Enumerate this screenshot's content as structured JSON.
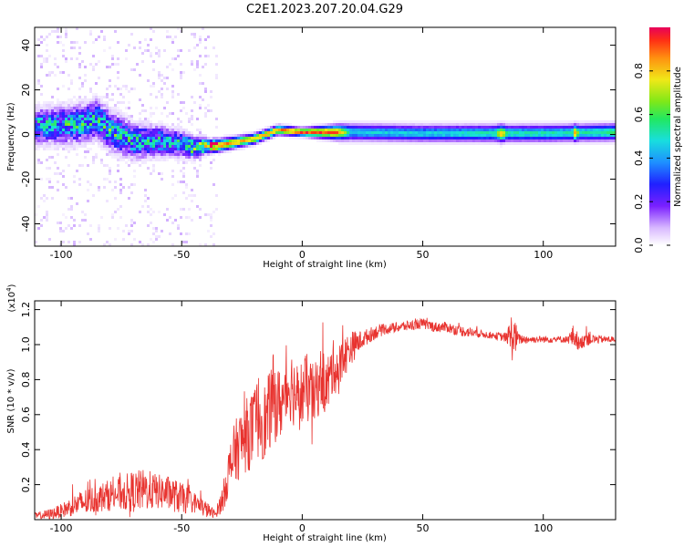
{
  "title": "C2E1.2023.207.20.04.G29",
  "colors": {
    "snr_line": "#e8332f",
    "colormap": [
      "#ffffff",
      "#e8d8ff",
      "#b070ff",
      "#6a18ff",
      "#2020ff",
      "#1e8cff",
      "#18dede",
      "#22e87a",
      "#7ee818",
      "#f0e818",
      "#ffa010",
      "#ff3c14",
      "#e8005a"
    ]
  },
  "chart_data": [
    {
      "type": "heatmap",
      "xlabel": "Height of straight line (km)",
      "ylabel": "Frequency (Hz)",
      "xlim": [
        -111,
        130
      ],
      "ylim": [
        -50,
        48
      ],
      "x_ticks": [
        -100,
        -50,
        0,
        50,
        100
      ],
      "y_ticks": [
        -40,
        -20,
        0,
        20,
        40
      ],
      "x_tick_labels": [
        "-100",
        "-50",
        "0",
        "50",
        "100"
      ],
      "y_tick_labels": [
        "-40",
        "-20",
        "0",
        "20",
        "40"
      ],
      "ridge_center_hz": [
        [
          -111,
          4
        ],
        [
          -100,
          4
        ],
        [
          -90,
          5
        ],
        [
          -85,
          7
        ],
        [
          -80,
          2
        ],
        [
          -70,
          -3
        ],
        [
          -60,
          -3
        ],
        [
          -50,
          -4
        ],
        [
          -45,
          -6
        ],
        [
          -40,
          -5
        ],
        [
          -35,
          -5
        ],
        [
          -25,
          -3
        ],
        [
          -20,
          -2
        ],
        [
          -15,
          0
        ],
        [
          -10,
          2
        ],
        [
          0,
          1
        ],
        [
          10,
          1
        ],
        [
          20,
          1
        ],
        [
          50,
          0.5
        ],
        [
          100,
          0.5
        ],
        [
          130,
          1
        ]
      ],
      "ridge_halfwidth_hz": [
        [
          -111,
          8
        ],
        [
          -80,
          9
        ],
        [
          -50,
          6
        ],
        [
          -38,
          3
        ],
        [
          -20,
          2.5
        ],
        [
          0,
          2
        ],
        [
          20,
          4
        ],
        [
          50,
          4
        ],
        [
          130,
          4
        ]
      ],
      "ridge_peak_amplitude": [
        [
          -111,
          0.45
        ],
        [
          -80,
          0.5
        ],
        [
          -50,
          0.45
        ],
        [
          -38,
          0.9
        ],
        [
          -20,
          0.8
        ],
        [
          0,
          0.95
        ],
        [
          15,
          0.9
        ],
        [
          20,
          0.5
        ],
        [
          50,
          0.5
        ],
        [
          80,
          0.55
        ],
        [
          83,
          0.9
        ],
        [
          85,
          0.55
        ],
        [
          112,
          0.55
        ],
        [
          113,
          0.9
        ],
        [
          115,
          0.55
        ],
        [
          130,
          0.6
        ]
      ],
      "colorbar": {
        "label": "Normalized spectral amplitude",
        "range": [
          0,
          1
        ],
        "ticks": [
          0.0,
          0.2,
          0.4,
          0.6,
          0.8
        ],
        "tick_labels": [
          "0.0",
          "0.2",
          "0.4",
          "0.6",
          "0.8"
        ]
      }
    },
    {
      "type": "line",
      "xlabel": "Height of straight line (km)",
      "ylabel": "SNR (10 * v/v)",
      "y_multiplier": "(x10",
      "y_multiplier_exp": "4",
      "y_multiplier_close": ")",
      "xlim": [
        -111,
        130
      ],
      "ylim": [
        0,
        1.25
      ],
      "x_ticks": [
        -100,
        -50,
        0,
        50,
        100
      ],
      "y_ticks": [
        0.2,
        0.4,
        0.6,
        0.8,
        1.0,
        1.2
      ],
      "x_tick_labels": [
        "-100",
        "-50",
        "0",
        "50",
        "100"
      ],
      "y_tick_labels": [
        "0.2",
        "0.4",
        "0.6",
        "0.8",
        "1.0",
        "1.2"
      ],
      "series": [
        {
          "name": "SNR",
          "x": [
            -111,
            -105,
            -100,
            -95,
            -90,
            -85,
            -80,
            -75,
            -70,
            -65,
            -60,
            -55,
            -50,
            -45,
            -40,
            -36,
            -33,
            -30,
            -28,
            -25,
            -22,
            -20,
            -18,
            -15,
            -12,
            -10,
            -8,
            -5,
            -2,
            0,
            2,
            5,
            8,
            10,
            13,
            15,
            17,
            20,
            25,
            30,
            35,
            40,
            45,
            50,
            55,
            60,
            65,
            70,
            75,
            80,
            85,
            87,
            90,
            95,
            100,
            105,
            110,
            113,
            115,
            118,
            120,
            125,
            130
          ],
          "y": [
            0.02,
            0.03,
            0.05,
            0.08,
            0.1,
            0.12,
            0.14,
            0.15,
            0.16,
            0.17,
            0.16,
            0.15,
            0.12,
            0.1,
            0.06,
            0.03,
            0.12,
            0.3,
            0.38,
            0.45,
            0.5,
            0.52,
            0.6,
            0.55,
            0.7,
            0.65,
            0.68,
            0.78,
            0.7,
            0.72,
            0.75,
            0.7,
            0.82,
            0.75,
            0.88,
            0.85,
            0.92,
            0.98,
            1.03,
            1.07,
            1.09,
            1.1,
            1.11,
            1.12,
            1.1,
            1.1,
            1.08,
            1.07,
            1.06,
            1.05,
            1.04,
            1.05,
            1.03,
            1.03,
            1.03,
            1.03,
            1.03,
            1.05,
            1.0,
            1.05,
            1.03,
            1.03,
            1.03
          ],
          "noise_amplitude": [
            0.02,
            0.03,
            0.04,
            0.06,
            0.08,
            0.08,
            0.09,
            0.1,
            0.12,
            0.12,
            0.1,
            0.1,
            0.09,
            0.06,
            0.05,
            0.02,
            0.08,
            0.15,
            0.18,
            0.2,
            0.22,
            0.22,
            0.25,
            0.22,
            0.25,
            0.22,
            0.2,
            0.22,
            0.2,
            0.2,
            0.2,
            0.18,
            0.18,
            0.18,
            0.15,
            0.15,
            0.12,
            0.1,
            0.05,
            0.04,
            0.03,
            0.03,
            0.03,
            0.03,
            0.03,
            0.03,
            0.03,
            0.03,
            0.02,
            0.02,
            0.03,
            0.15,
            0.03,
            0.02,
            0.02,
            0.02,
            0.02,
            0.08,
            0.03,
            0.06,
            0.03,
            0.02,
            0.02
          ]
        }
      ]
    }
  ]
}
